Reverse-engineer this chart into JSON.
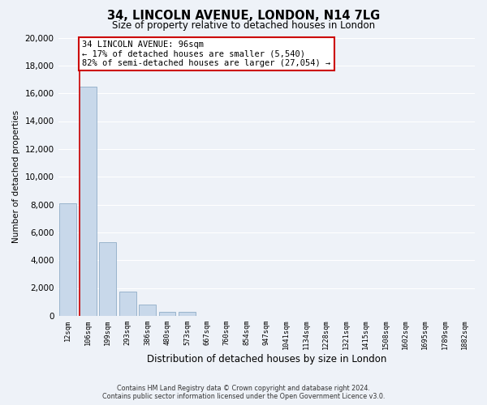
{
  "title": "34, LINCOLN AVENUE, LONDON, N14 7LG",
  "subtitle": "Size of property relative to detached houses in London",
  "xlabel": "Distribution of detached houses by size in London",
  "ylabel": "Number of detached properties",
  "bar_labels": [
    "12sqm",
    "106sqm",
    "199sqm",
    "293sqm",
    "386sqm",
    "480sqm",
    "573sqm",
    "667sqm",
    "760sqm",
    "854sqm",
    "947sqm",
    "1041sqm",
    "1134sqm",
    "1228sqm",
    "1321sqm",
    "1415sqm",
    "1508sqm",
    "1602sqm",
    "1695sqm",
    "1789sqm",
    "1882sqm"
  ],
  "bar_values": [
    8100,
    16500,
    5300,
    1750,
    800,
    300,
    260,
    0,
    0,
    0,
    0,
    0,
    0,
    0,
    0,
    0,
    0,
    0,
    0,
    0,
    0
  ],
  "bar_color": "#c8d8ea",
  "bar_edge_color": "#9ab4cc",
  "property_line_color": "#cc0000",
  "annotation_title": "34 LINCOLN AVENUE: 96sqm",
  "annotation_line1": "← 17% of detached houses are smaller (5,540)",
  "annotation_line2": "82% of semi-detached houses are larger (27,054) →",
  "annotation_box_color": "#ffffff",
  "annotation_box_edge_color": "#cc0000",
  "ylim": [
    0,
    20000
  ],
  "yticks": [
    0,
    2000,
    4000,
    6000,
    8000,
    10000,
    12000,
    14000,
    16000,
    18000,
    20000
  ],
  "footer_line1": "Contains HM Land Registry data © Crown copyright and database right 2024.",
  "footer_line2": "Contains public sector information licensed under the Open Government Licence v3.0.",
  "bg_color": "#eef2f8",
  "grid_color": "#ffffff"
}
